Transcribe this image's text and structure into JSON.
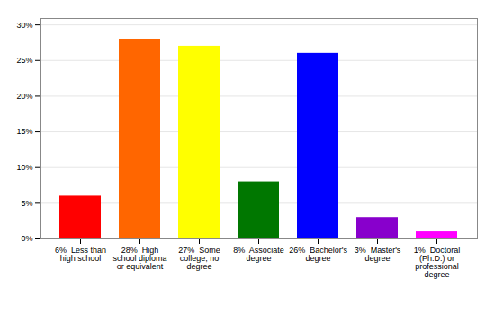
{
  "chart_data": {
    "type": "bar",
    "categories": [
      "6%  Less than\nhigh school",
      "28%  High\nschool diploma\nor equivalent",
      "27%  Some\ncollege, no\ndegree",
      "8%  Associate\ndegree",
      "26%  Bachelor's\ndegree",
      "3%  Master's\ndegree",
      "1%  Doctoral\n(Ph.D.) or\nprofessional\ndegree"
    ],
    "values": [
      6,
      28,
      27,
      8,
      26,
      3,
      1
    ],
    "colors": [
      "#ff0000",
      "#ff6600",
      "#ffff00",
      "#007700",
      "#0000ff",
      "#8800cc",
      "#ff00ff"
    ],
    "ylim": [
      0,
      30.9
    ],
    "yticks": [
      {
        "value": 0,
        "label": "0%"
      },
      {
        "value": 5,
        "label": "5%"
      },
      {
        "value": 10,
        "label": "10%"
      },
      {
        "value": 15,
        "label": "15%"
      },
      {
        "value": 20,
        "label": "20%"
      },
      {
        "value": 25,
        "label": "25%"
      },
      {
        "value": 30,
        "label": "30%"
      }
    ],
    "grid": true
  }
}
